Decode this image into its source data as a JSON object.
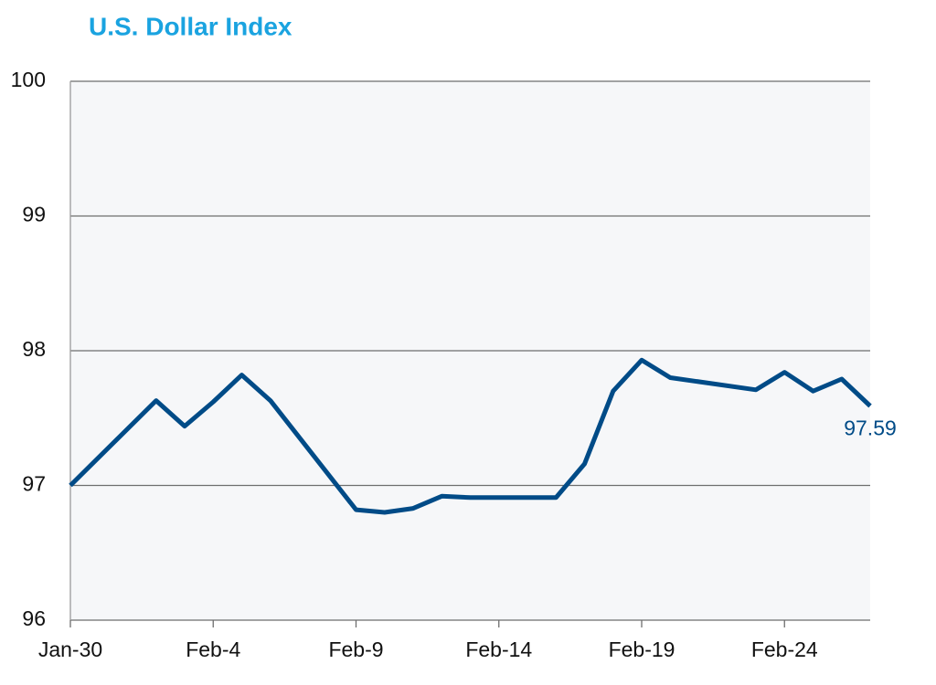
{
  "chart_data": {
    "type": "line",
    "title": "U.S. Dollar Index",
    "x": [
      "Jan-30",
      "Feb-2",
      "Feb-3",
      "Feb-4",
      "Feb-5",
      "Feb-6",
      "Feb-9",
      "Feb-10",
      "Feb-11",
      "Feb-12",
      "Feb-13",
      "Feb-16",
      "Feb-17",
      "Feb-18",
      "Feb-19",
      "Feb-20",
      "Feb-23",
      "Feb-24",
      "Feb-25",
      "Feb-26",
      "Feb-27"
    ],
    "series": [
      {
        "name": "U.S. Dollar Index",
        "color": "#004b87",
        "values": [
          97.0,
          97.63,
          97.44,
          97.62,
          97.82,
          97.63,
          96.82,
          96.8,
          96.83,
          96.92,
          96.91,
          96.91,
          97.16,
          97.7,
          97.93,
          97.8,
          97.71,
          97.84,
          97.7,
          97.79,
          97.59
        ]
      }
    ],
    "xlim": [
      "Jan-30",
      "Feb-27"
    ],
    "xticks": [
      "Jan-30",
      "Feb-4",
      "Feb-9",
      "Feb-14",
      "Feb-19",
      "Feb-24"
    ],
    "ylim": [
      96,
      100
    ],
    "yticks": [
      96,
      97,
      98,
      99,
      100
    ],
    "grid": true
  }
}
